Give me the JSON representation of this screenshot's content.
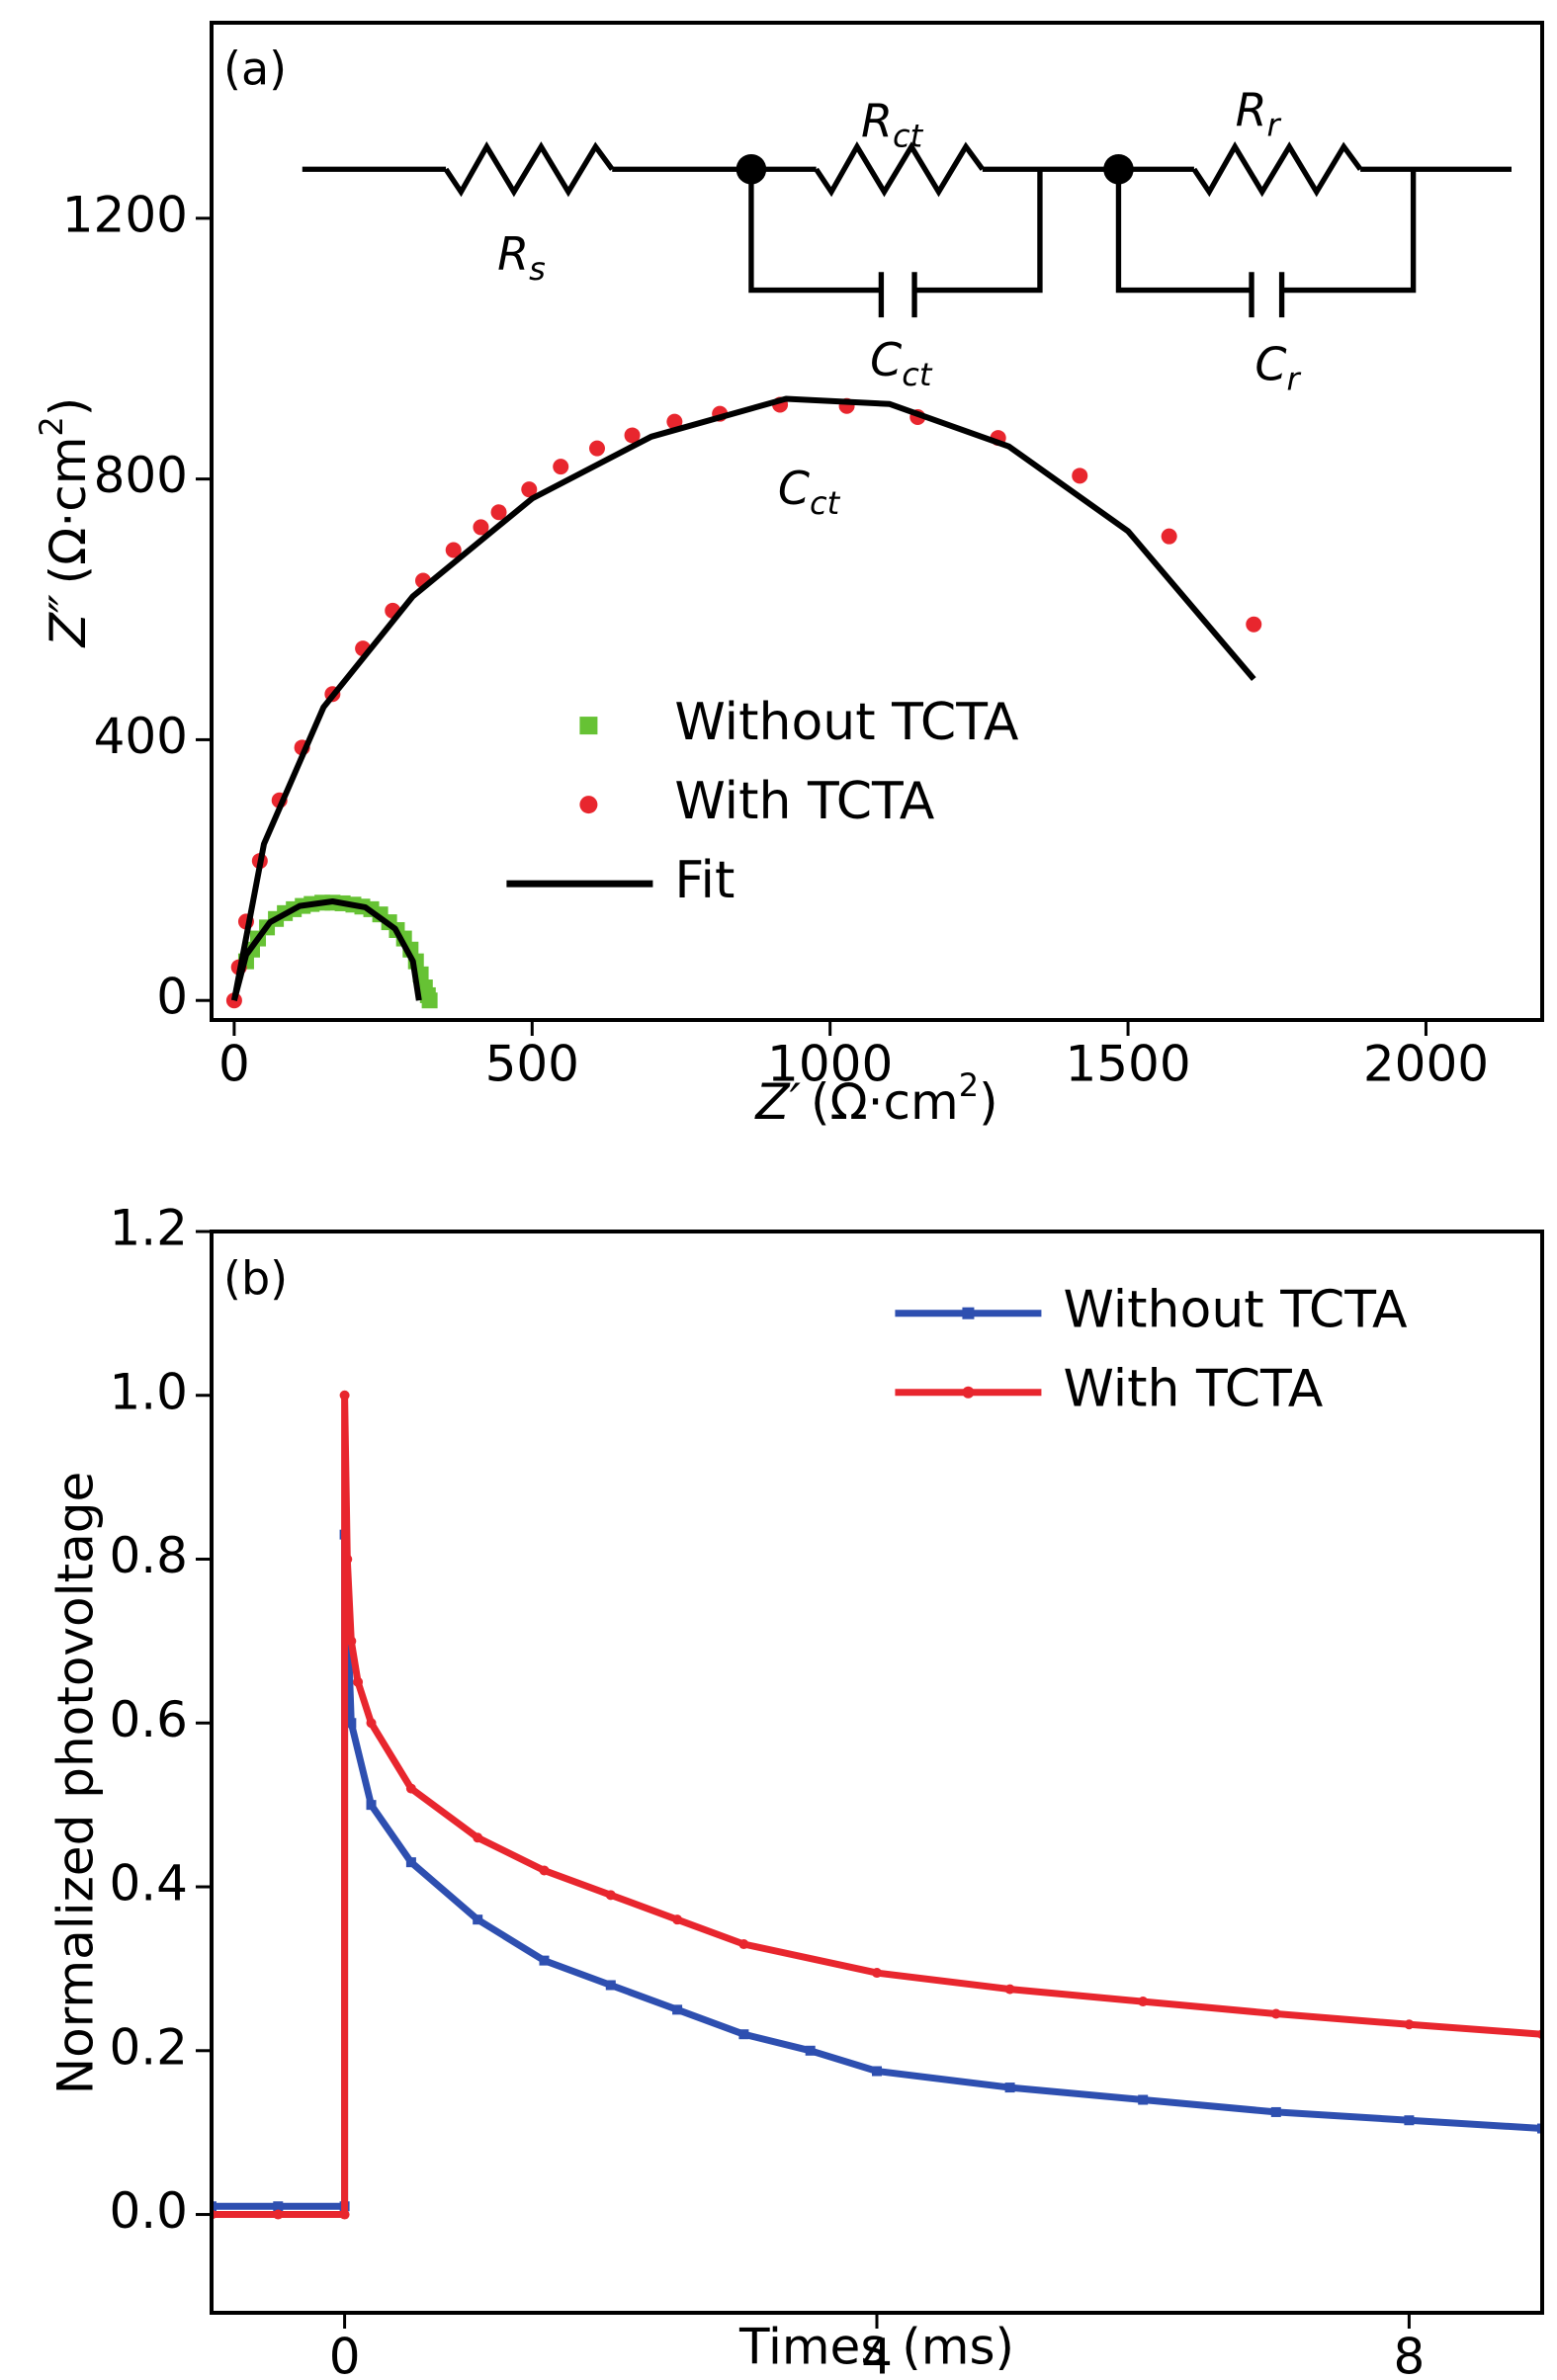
{
  "chart_data": [
    {
      "type": "scatter",
      "panel_label": "(a)",
      "xlabel": {
        "main": "Z′",
        "unit": "(Ω·cm",
        "sup": "2",
        "end": ")"
      },
      "ylabel": {
        "main": "Z″",
        "unit": "(Ω·cm",
        "sup": "2",
        "end": ")"
      },
      "xlim": [
        -38,
        2195
      ],
      "ylim": [
        -30,
        1500
      ],
      "xticks": [
        0,
        500,
        1000,
        1500,
        2000
      ],
      "yticks": [
        0,
        400,
        800,
        1200
      ],
      "legend": "center left",
      "annotations": [
        {
          "symbol": "R",
          "subscript": "s"
        },
        {
          "symbol": "R",
          "subscript": "ct"
        },
        {
          "symbol": "R",
          "subscript": "r"
        },
        {
          "symbol": "C",
          "subscript": "ct"
        },
        {
          "symbol": "C",
          "subscript": "r"
        },
        {
          "symbol": "C",
          "subscript": "ct"
        }
      ],
      "series": [
        {
          "name": "Without TCTA",
          "color": "#66c234",
          "marker": "square",
          "line": false,
          "x": [
            20,
            30,
            40,
            55,
            70,
            85,
            100,
            115,
            130,
            148,
            165,
            182,
            200,
            215,
            230,
            245,
            260,
            273,
            285,
            296,
            305,
            313,
            320,
            325,
            328
          ],
          "y": [
            60,
            78,
            95,
            112,
            125,
            134,
            140,
            145,
            148,
            150,
            150,
            149,
            147,
            144,
            140,
            132,
            120,
            108,
            95,
            78,
            60,
            40,
            20,
            8,
            0
          ]
        },
        {
          "name": "With TCTA",
          "color": "#e8262e",
          "marker": "circle",
          "line": false,
          "x": [
            0,
            8,
            20,
            43,
            76,
            114,
            165,
            216,
            266,
            317,
            368,
            414,
            444,
            495,
            548,
            609,
            668,
            739,
            815,
            916,
            1028,
            1147,
            1282,
            1419,
            1569,
            1711
          ],
          "y": [
            0,
            51,
            121,
            214,
            307,
            388,
            470,
            540,
            598,
            644,
            691,
            726,
            749,
            784,
            819,
            847,
            867,
            888,
            900,
            914,
            912,
            895,
            863,
            805,
            712,
            577
          ]
        },
        {
          "name": "Fit",
          "color": "#000000",
          "marker": null,
          "line": true,
          "x": [
            0,
            20,
            60,
            110,
            165,
            220,
            270,
            300,
            310,
            null,
            0,
            50,
            150,
            300,
            500,
            700,
            926,
            1100,
            1300,
            1500,
            1711
          ],
          "y": [
            0,
            70,
            120,
            145,
            152,
            143,
            110,
            60,
            0,
            null,
            0,
            240,
            450,
            620,
            770,
            865,
            923,
            915,
            850,
            720,
            493
          ]
        }
      ]
    },
    {
      "type": "line",
      "panel_label": "(b)",
      "xlabel": "Times (ms)",
      "ylabel": "Normalized photovoltage",
      "xlim": [
        -1,
        9
      ],
      "ylim": [
        -0.12,
        1.2
      ],
      "xticks": [
        0,
        4,
        8
      ],
      "yticks": [
        {
          "value": 0,
          "label": "0.0"
        },
        0.2,
        0.4,
        0.6,
        0.8,
        {
          "value": 1,
          "label": "1.0"
        },
        1.2
      ],
      "legend": "upper right",
      "series": [
        {
          "name": "Without TCTA",
          "color": "#2e4fb0",
          "marker": "square",
          "line": true,
          "x": [
            -1,
            -0.5,
            0,
            0,
            0.05,
            0.2,
            0.5,
            1,
            1.5,
            2,
            2.5,
            3,
            3.5,
            4,
            5,
            6,
            7,
            8,
            9
          ],
          "y": [
            0.01,
            0.01,
            0.01,
            0.83,
            0.6,
            0.5,
            0.43,
            0.36,
            0.31,
            0.28,
            0.25,
            0.22,
            0.2,
            0.175,
            0.155,
            0.14,
            0.125,
            0.115,
            0.105
          ]
        },
        {
          "name": "With TCTA",
          "color": "#e8262e",
          "marker": "circle",
          "line": true,
          "x": [
            -1,
            -0.5,
            0,
            0,
            0.02,
            0.05,
            0.1,
            0.2,
            0.5,
            1,
            1.5,
            2,
            2.5,
            3,
            4,
            5,
            6,
            7,
            8,
            9
          ],
          "y": [
            0,
            0,
            0,
            1.0,
            0.8,
            0.7,
            0.65,
            0.6,
            0.52,
            0.46,
            0.42,
            0.39,
            0.36,
            0.33,
            0.295,
            0.275,
            0.26,
            0.245,
            0.232,
            0.22
          ]
        }
      ]
    }
  ]
}
